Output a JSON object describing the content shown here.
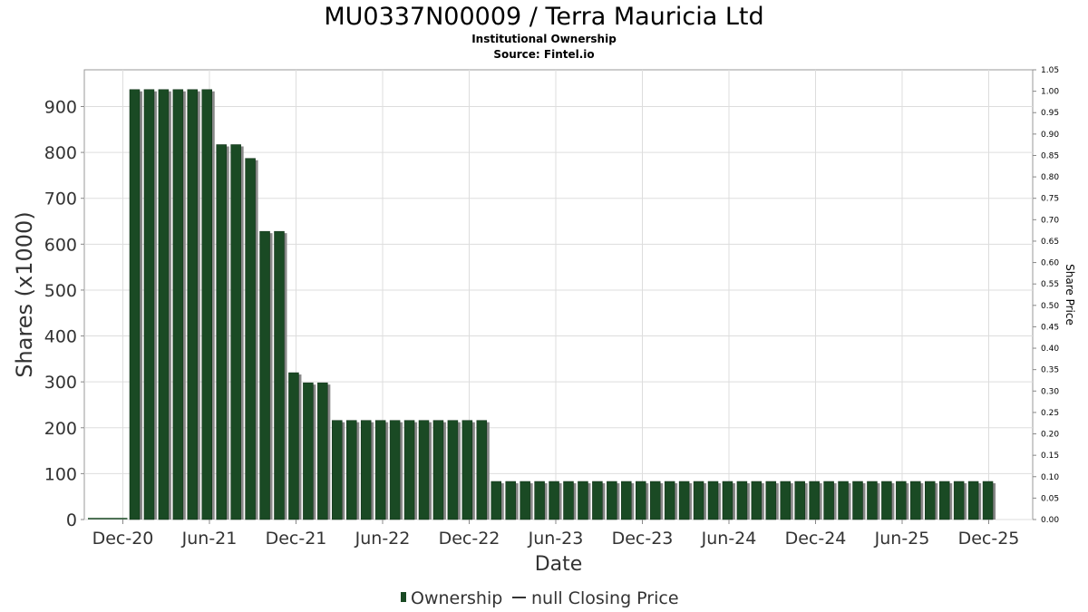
{
  "chart_data": {
    "type": "bar",
    "title": "MU0337N00009 / Terra Mauricia Ltd",
    "subtitle": "Institutional Ownership",
    "source": "Source: Fintel.io",
    "xlabel": "Date",
    "ylabel": "Shares (x1000)",
    "y2label": "Share Price",
    "ylim": [
      0,
      980
    ],
    "y2lim": [
      0,
      1.05
    ],
    "yticks": [
      "0",
      "100",
      "200",
      "300",
      "400",
      "500",
      "600",
      "700",
      "800",
      "900"
    ],
    "y2ticks": [
      "0.00",
      "0.05",
      "0.10",
      "0.15",
      "0.20",
      "0.25",
      "0.30",
      "0.35",
      "0.40",
      "0.45",
      "0.50",
      "0.55",
      "0.60",
      "0.65",
      "0.70",
      "0.75",
      "0.80",
      "0.85",
      "0.90",
      "0.95",
      "1.00",
      "1.05"
    ],
    "xticks": [
      "Dec-20",
      "Jun-21",
      "Dec-21",
      "Jun-22",
      "Dec-22",
      "Jun-23",
      "Dec-23",
      "Jun-24",
      "Dec-24",
      "Jun-25",
      "Dec-25"
    ],
    "grid": true,
    "legend_position": "bottom",
    "series": [
      {
        "name": "Ownership",
        "color": "#1a4a24",
        "values": [
          937,
          937,
          937,
          937,
          937,
          937,
          817,
          817,
          787,
          628,
          628,
          320,
          298,
          298,
          216,
          216,
          216,
          216,
          216,
          216,
          216,
          216,
          216,
          216,
          216,
          83,
          83,
          83,
          83,
          83,
          83,
          83,
          83,
          83,
          83,
          83,
          83,
          83,
          83,
          83,
          83,
          83,
          83,
          83,
          83,
          83,
          83,
          83,
          83,
          83,
          83,
          83,
          83,
          83,
          83,
          83,
          83,
          83,
          83,
          83
        ]
      },
      {
        "name": "null Closing Price",
        "color": "#333333",
        "values": []
      }
    ]
  }
}
